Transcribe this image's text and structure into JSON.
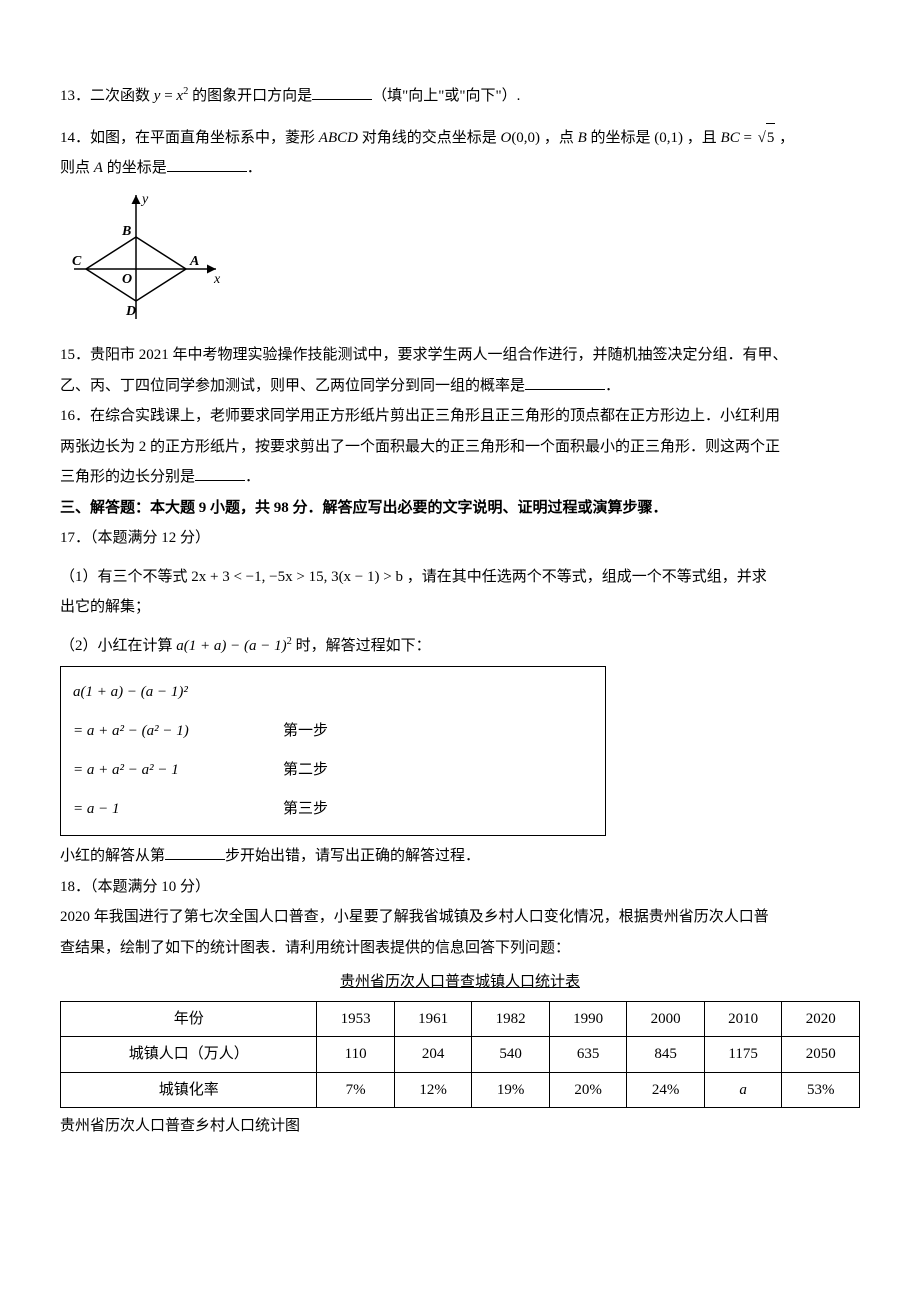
{
  "q13": {
    "num": "13．",
    "text_a": "二次函数 ",
    "expr_y": "y",
    "expr_eq": " = ",
    "expr_x": "x",
    "expr_sq": "2",
    "text_b": " 的图象开口方向是",
    "text_c": "（填\"向上\"或\"向下\"）."
  },
  "q14": {
    "num": "14．",
    "text_a": "如图，在平面直角坐标系中，菱形 ",
    "abcd": "ABCD",
    "text_b": " 对角线的交点坐标是 ",
    "O": "O",
    "coord_o": "(0,0)",
    "text_c": " ，点 ",
    "B": "B",
    "text_d": " 的坐标是 ",
    "coord_b": "(0,1)",
    "text_e": " ，且 ",
    "BC": "BC",
    "eq": " = ",
    "sqrt5": "5",
    "text_f": " ，",
    "text_g": "则点 ",
    "A": "A",
    "text_h": " 的坐标是",
    "text_i": "．",
    "svg": {
      "width": 160,
      "height": 140,
      "ox": 70,
      "oy": 80,
      "labels": {
        "y": "y",
        "x": "x",
        "B": "B",
        "A": "A",
        "C": "C",
        "D": "D",
        "O": "O"
      }
    }
  },
  "q15": {
    "num": "15．",
    "text_a": "贵阳市 2021 年中考物理实验操作技能测试中，要求学生两人一组合作进行，并随机抽签决定分组．有甲、",
    "text_b": "乙、丙、丁四位同学参加测试，则甲、乙两位同学分到同一组的概率是",
    "text_c": "．"
  },
  "q16": {
    "num": "16．",
    "text_a": "在综合实践课上，老师要求同学用正方形纸片剪出正三角形且正三角形的顶点都在正方形边上．小红利用",
    "text_b": "两张边长为 2 的正方形纸片，按要求剪出了一个面积最大的正三角形和一个面积最小的正三角形．则这两个正",
    "text_c": "三角形的边长分别是",
    "text_d": "．"
  },
  "section3": "三、解答题：本大题 9 小题，共 98 分．解答应写出必要的文字说明、证明过程或演算步骤．",
  "q17": {
    "num": "17．",
    "score": "（本题满分 12 分）",
    "p1_a": "（1）有三个不等式 ",
    "ineq1": "2x + 3 < −1, −5x > 15, 3(x − 1) > b",
    "p1_b": " ，请在其中任选两个不等式，组成一个不等式组，并求",
    "p1_c": "出它的解集；",
    "p2_a": "（2）小红在计算 ",
    "expr2": "a(1 + a) − (a − 1)",
    "expr2_sup": "2",
    "p2_b": " 时，解答过程如下：",
    "box": {
      "line0": "a(1 + a) − (a − 1)²",
      "line1_l": "= a + a² − (a² − 1)",
      "line1_r": "第一步",
      "line2_l": "= a + a² − a² − 1",
      "line2_r": "第二步",
      "line3_l": "= a − 1",
      "line3_r": "第三步"
    },
    "p3_a": "小红的解答从第",
    "p3_b": "步开始出错，请写出正确的解答过程．"
  },
  "q18": {
    "num": "18．",
    "score": "（本题满分 10 分）",
    "text_a": "2020 年我国进行了第七次全国人口普查，小星要了解我省城镇及乡村人口变化情况，根据贵州省历次人口普",
    "text_b": "查结果，绘制了如下的统计图表．请利用统计图表提供的信息回答下列问题：",
    "caption": "贵州省历次人口普查城镇人口统计表",
    "table": {
      "col_headers": [
        "年份",
        "1953",
        "1961",
        "1982",
        "1990",
        "2000",
        "2010",
        "2020"
      ],
      "rows": [
        [
          "城镇人口（万人）",
          "110",
          "204",
          "540",
          "635",
          "845",
          "1175",
          "2050"
        ],
        [
          "城镇化率",
          "7%",
          "12%",
          "19%",
          "20%",
          "24%",
          "a",
          "53%"
        ]
      ],
      "a_italic": true
    },
    "sub_caption": "贵州省历次人口普查乡村人口统计图"
  }
}
